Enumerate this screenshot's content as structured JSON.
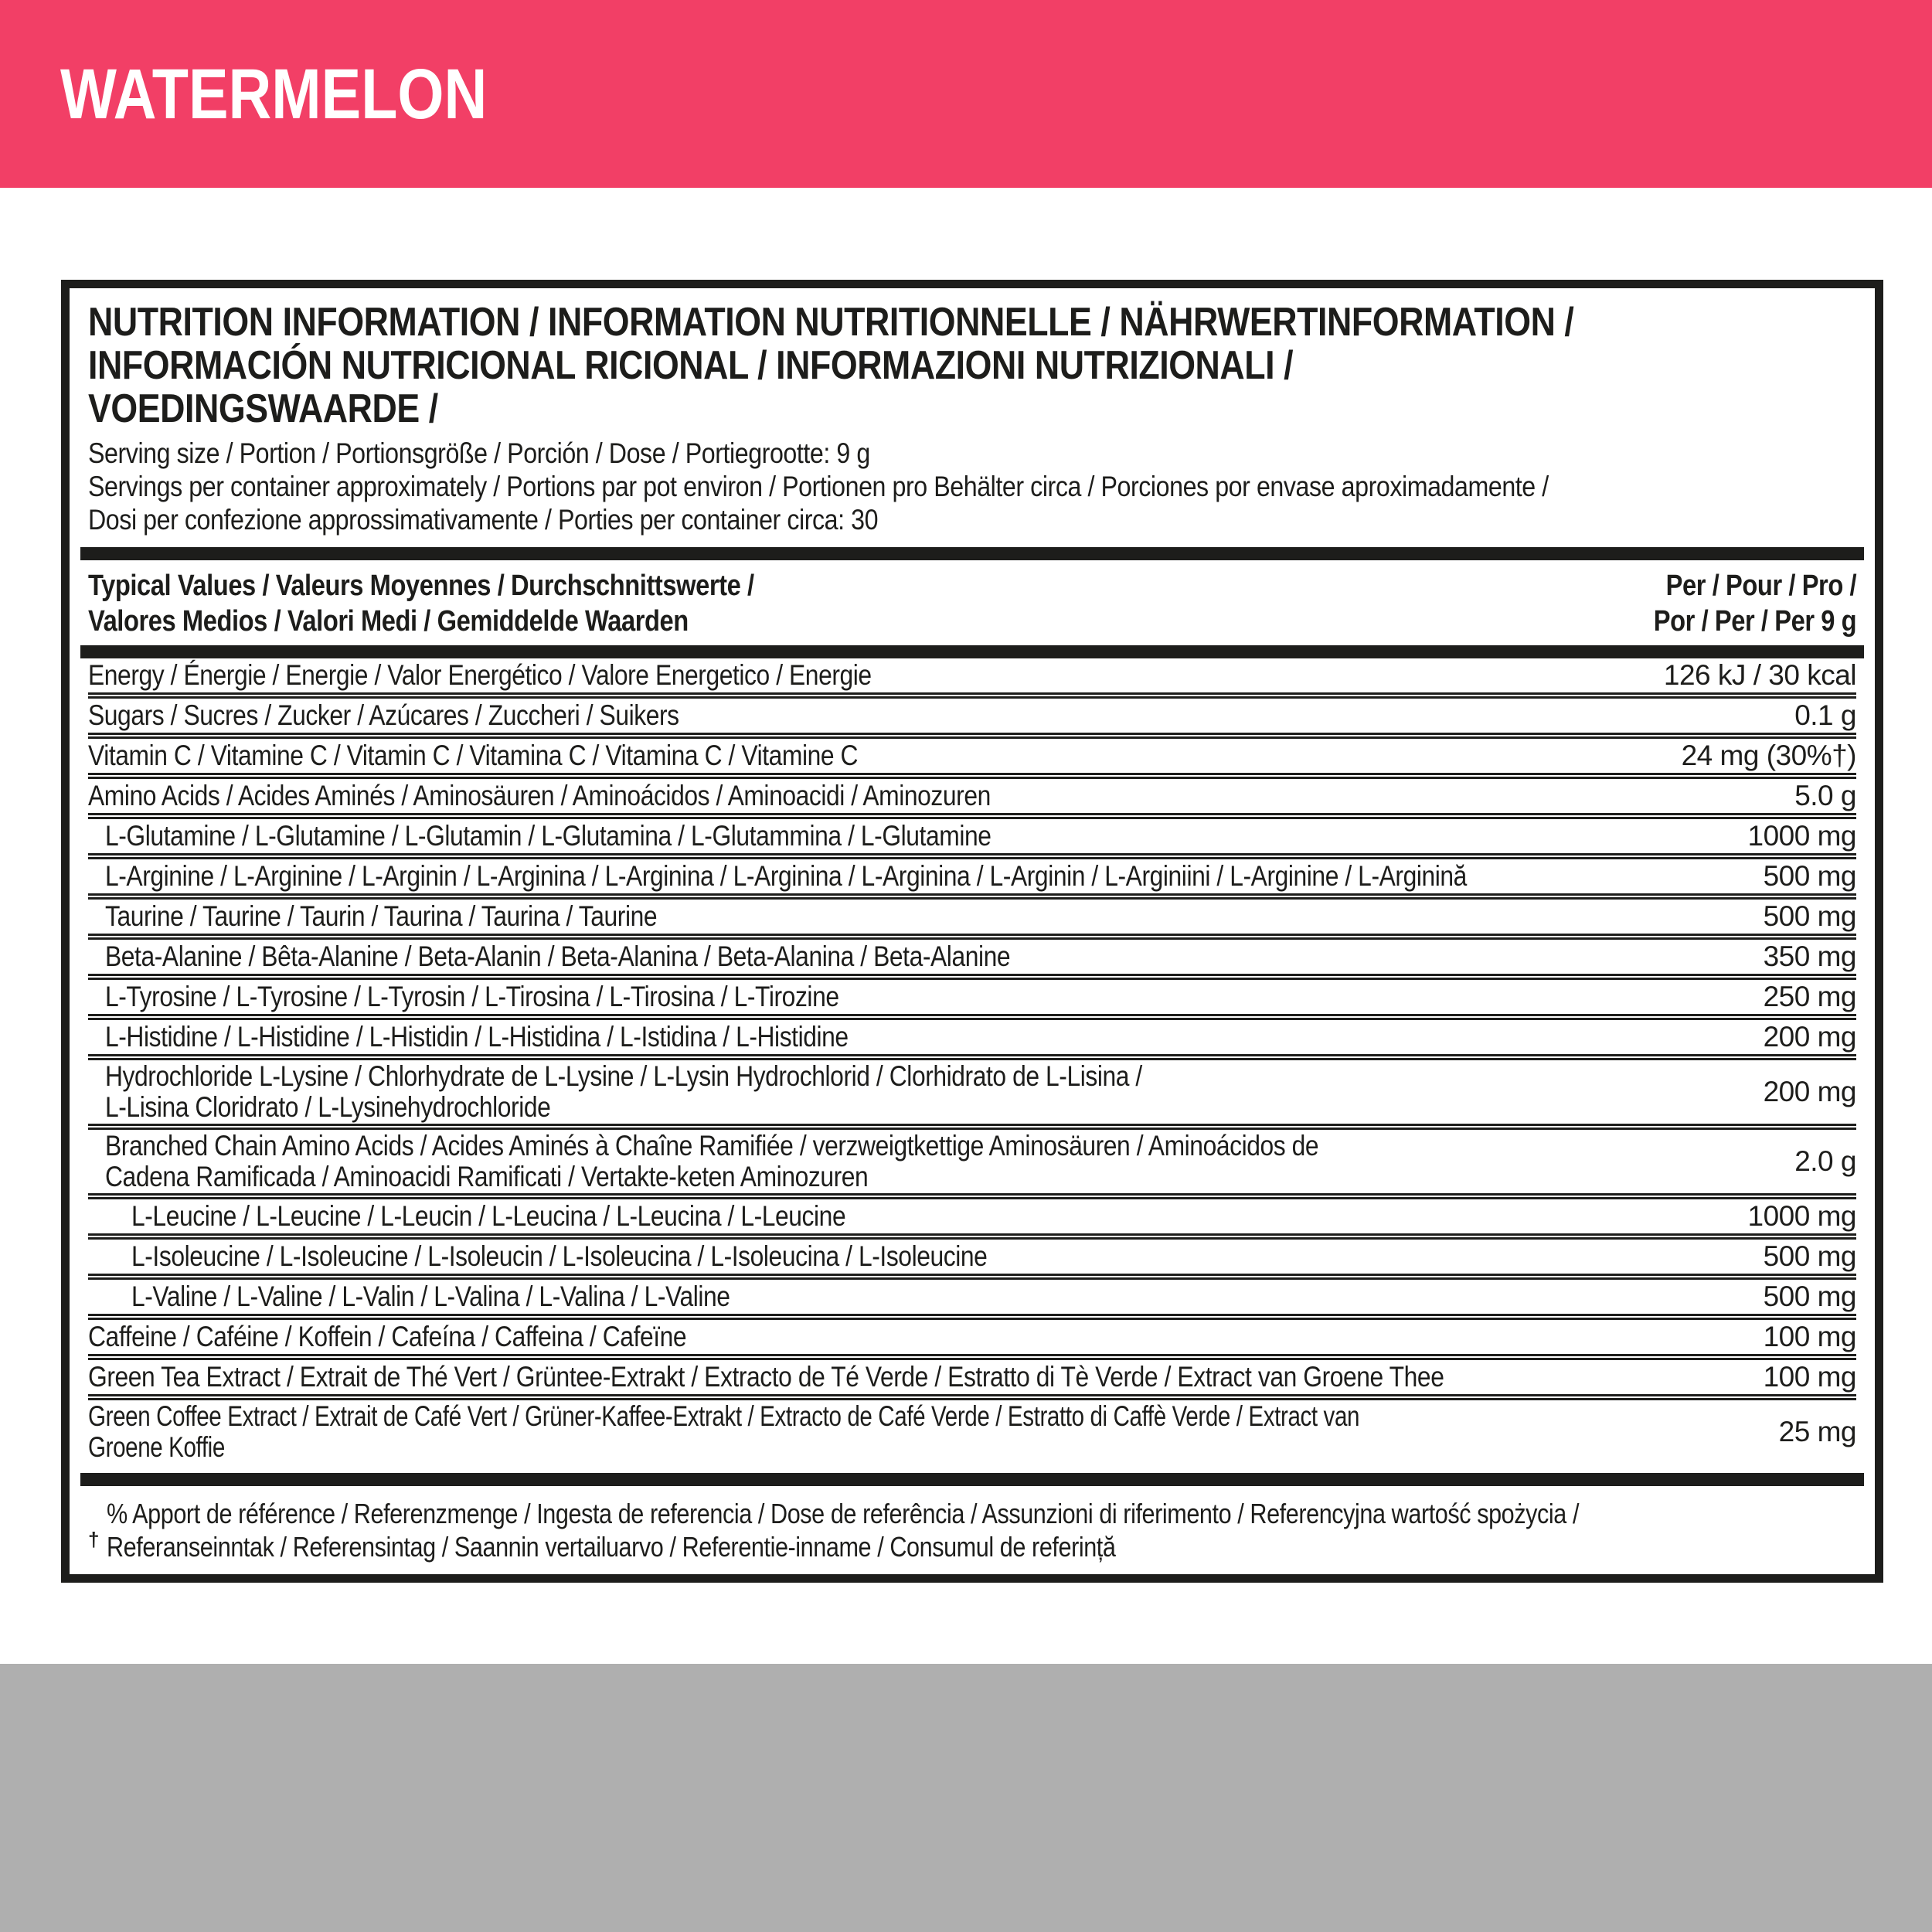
{
  "flavor_banner": {
    "title": "WATERMELON",
    "bg_color": "#f23f66",
    "text_color": "#ffffff"
  },
  "panel": {
    "title": "NUTRITION INFORMATION / INFORMATION NUTRITIONNELLE / NÄHRWERTINFORMATION /\nINFORMACIÓN NUTRICIONAL RICIONAL / INFORMAZIONI NUTRIZIONALI / VOEDINGSWAARDE /",
    "serving_info": "Serving size / Portion / Portionsgröße / Porción / Dose / Portiegrootte: 9 g\nServings per container approximately / Portions par pot environ / Portionen pro Behälter circa / Porciones por envase aproximadamente /\nDosi per confezione approssimativamente / Porties per container circa: 30",
    "serving_size_g": "9 g",
    "servings_per_container": "30",
    "header": {
      "left": "Typical Values / Valeurs Moyennes / Durchschnittswerte /\nValores Medios / Valori Medi / Gemiddelde Waarden",
      "right": "Per / Pour / Pro /\nPor / Per / Per 9 g"
    },
    "rows": [
      {
        "label": "Energy / Énergie / Energie / Valor Energético / Valore Energetico / Energie",
        "value": "126 kJ / 30 kcal",
        "indent": 0
      },
      {
        "label": "Sugars / Sucres / Zucker / Azúcares / Zuccheri / Suikers",
        "value": "0.1 g",
        "indent": 0
      },
      {
        "label": "Vitamin C / Vitamine C / Vitamin C / Vitamina C / Vitamina C / Vitamine C",
        "value": "24 mg (30%†)",
        "indent": 0
      },
      {
        "label": "Amino Acids / Acides Aminés / Aminosäuren / Aminoácidos / Aminoacidi / Aminozuren",
        "value": "5.0 g",
        "indent": 0
      },
      {
        "label": "L-Glutamine / L-Glutamine / L-Glutamin / L-Glutamina / L-Glutammina / L-Glutamine",
        "value": "1000 mg",
        "indent": 1
      },
      {
        "label": "L-Arginine / L-Arginine / L-Arginin / L-Arginina / L-Arginina / L-Arginina / L-Arginina / L-Arginin / L-Arginiini / L-Arginine / L-Arginină",
        "value": "500 mg",
        "indent": 1
      },
      {
        "label": "Taurine / Taurine / Taurin / Taurina / Taurina / Taurine",
        "value": "500 mg",
        "indent": 1
      },
      {
        "label": "Beta-Alanine / Bêta-Alanine / Beta-Alanin / Beta-Alanina / Beta-Alanina / Beta-Alanine",
        "value": "350 mg",
        "indent": 1
      },
      {
        "label": "L-Tyrosine / L-Tyrosine / L-Tyrosin / L-Tirosina / L-Tirosina / L-Tirozine",
        "value": "250 mg",
        "indent": 1
      },
      {
        "label": "L-Histidine / L-Histidine / L-Histidin / L-Histidina / L-Istidina / L-Histidine",
        "value": "200 mg",
        "indent": 1
      },
      {
        "label": "Hydrochloride L-Lysine / Chlorhydrate de L-Lysine / L-Lysin Hydrochlorid / Clorhidrato de L-Lisina /\nL-Lisina Cloridrato / L-Lysinehydrochloride",
        "value": "200 mg",
        "indent": 1
      },
      {
        "label": "Branched Chain Amino Acids / Acides Aminés à Chaîne Ramifiée / verzweigtkettige Aminosäuren / Aminoácidos de\nCadena Ramificada / Aminoacidi Ramificati / Vertakte-keten Aminozuren",
        "value": "2.0 g",
        "indent": 1
      },
      {
        "label": "L-Leucine / L-Leucine / L-Leucin / L-Leucina / L-Leucina / L-Leucine",
        "value": "1000 mg",
        "indent": 2
      },
      {
        "label": "L-Isoleucine / L-Isoleucine / L-Isoleucin / L-Isoleucina / L-Isoleucina / L-Isoleucine",
        "value": "500 mg",
        "indent": 2
      },
      {
        "label": "L-Valine / L-Valine / L-Valin / L-Valina / L-Valina / L-Valine",
        "value": "500 mg",
        "indent": 2
      },
      {
        "label": "Caffeine / Caféine / Koffein / Cafeína / Caffeina / Cafeïne",
        "value": "100 mg",
        "indent": 0
      },
      {
        "label": "Green Tea Extract / Extrait de Thé Vert / Grüntee-Extrakt / Extracto de Té Verde / Estratto di Tè Verde / Extract van Groene Thee",
        "value": "100 mg",
        "indent": 0
      },
      {
        "label": "Green Coffee Extract / Extrait de Café Vert / Grüner-Kaffee-Extrakt / Extracto de Café Verde / Estratto di Caffè Verde / Extract van Groene Koffie",
        "value": "25 mg",
        "indent": 0
      }
    ],
    "footnote": {
      "dagger": "†",
      "text": "% Apport de référence / Referenzmenge / Ingesta de referencia / Dose de referência / Assunzioni di riferimento / Referencyjna wartość spożycia /\nReferanseinntak / Referensintag / Saannin vertailuarvo / Referentie-inname / Consumul de referință"
    }
  },
  "footer_band": {
    "color": "#afafaf"
  }
}
